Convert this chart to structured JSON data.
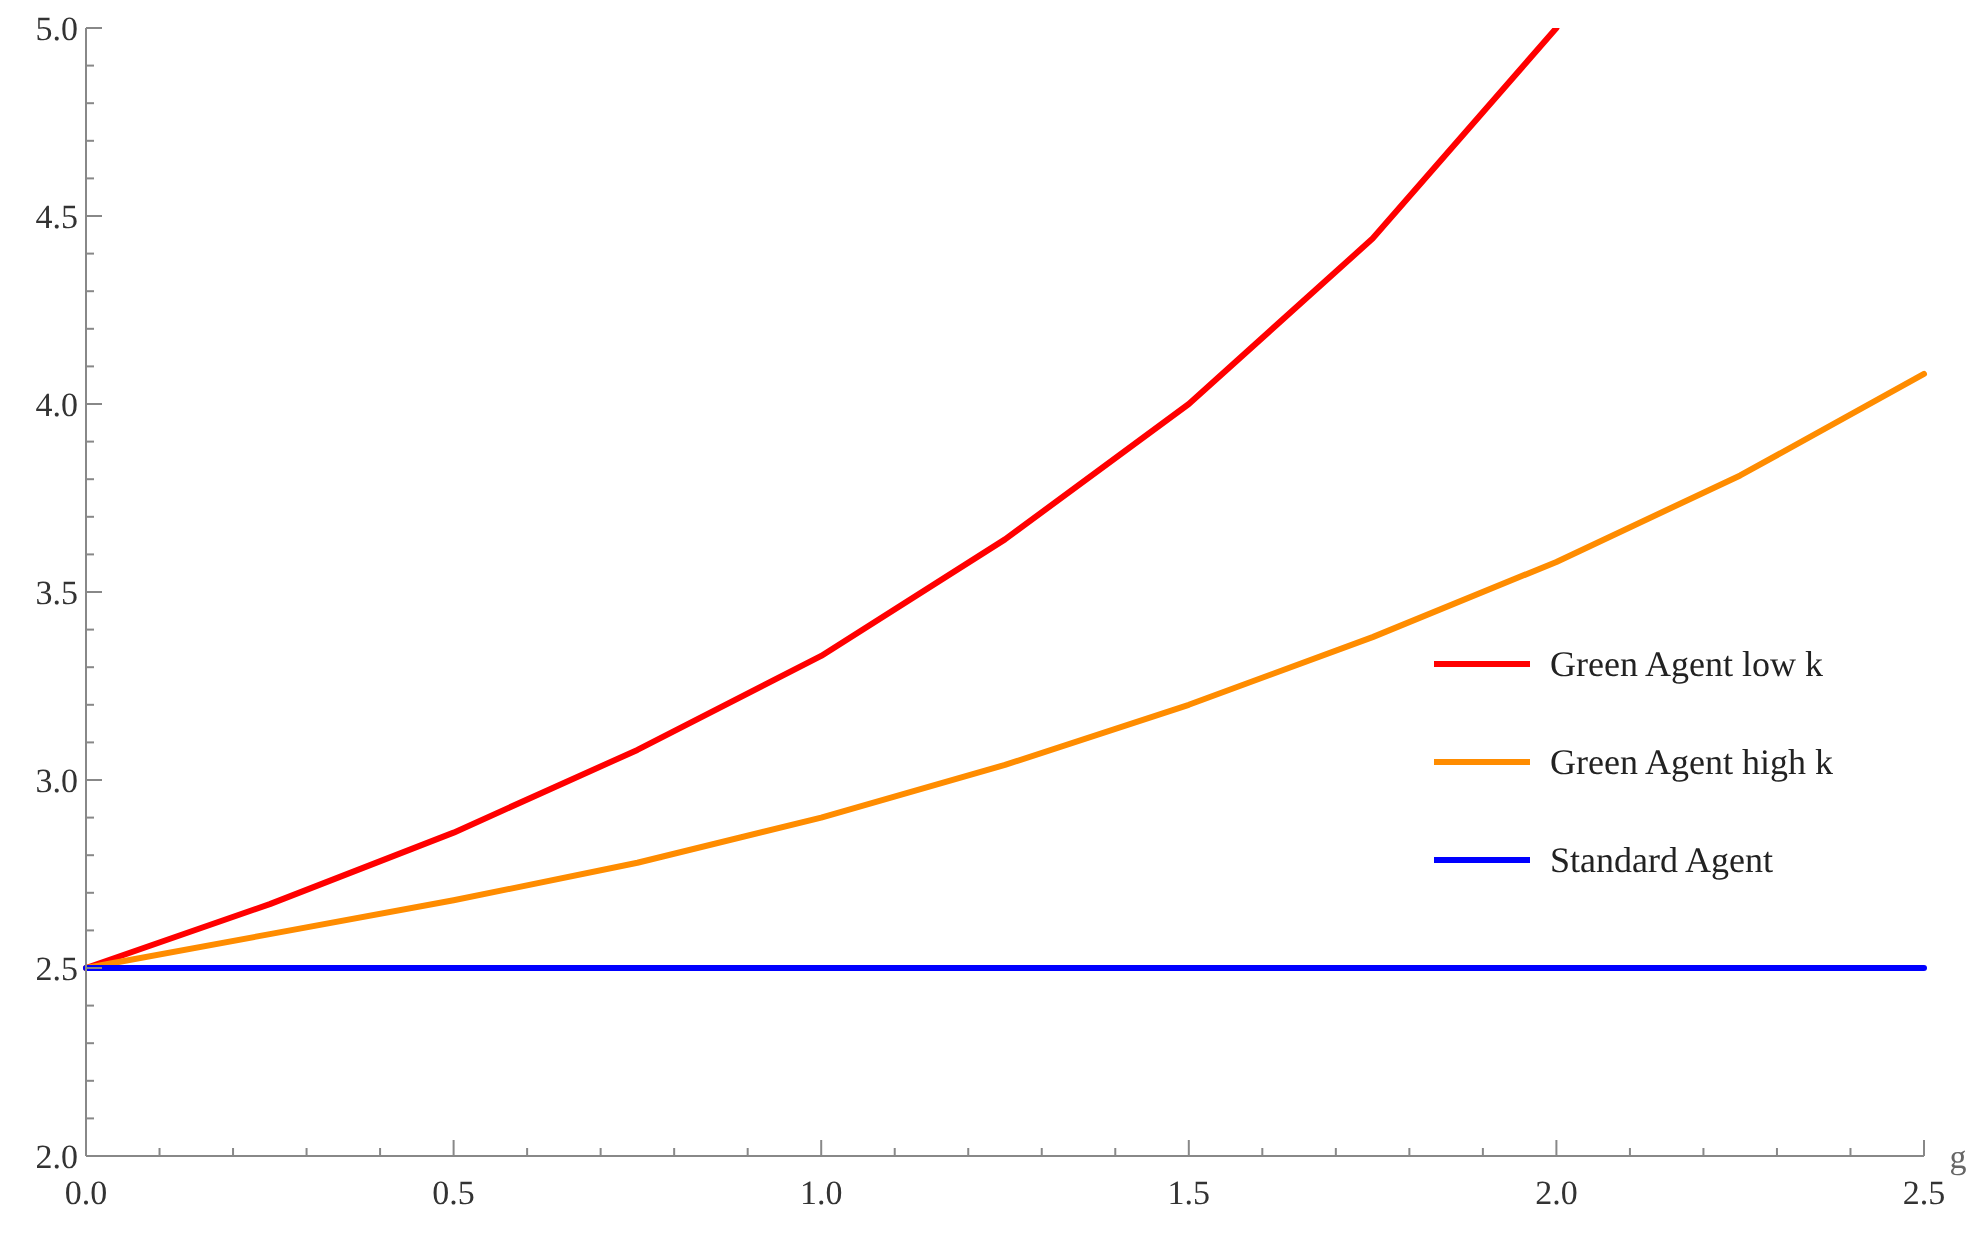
{
  "chart_data": {
    "type": "line",
    "xlabel": "g",
    "xlim": [
      0,
      2.5
    ],
    "ylim": [
      2,
      5
    ],
    "xticks": [
      {
        "value": 0,
        "label": "0.0"
      },
      {
        "value": 0.1,
        "label": null
      },
      {
        "value": 0.2,
        "label": null
      },
      {
        "value": 0.3,
        "label": null
      },
      {
        "value": 0.4,
        "label": null
      },
      {
        "value": 0.5,
        "label": "0.5"
      },
      {
        "value": 0.6,
        "label": null
      },
      {
        "value": 0.7,
        "label": null
      },
      {
        "value": 0.8,
        "label": null
      },
      {
        "value": 0.9,
        "label": null
      },
      {
        "value": 1,
        "label": "1.0"
      },
      {
        "value": 1.1,
        "label": null
      },
      {
        "value": 1.2,
        "label": null
      },
      {
        "value": 1.3,
        "label": null
      },
      {
        "value": 1.4,
        "label": null
      },
      {
        "value": 1.5,
        "label": "1.5"
      },
      {
        "value": 1.6,
        "label": null
      },
      {
        "value": 1.7,
        "label": null
      },
      {
        "value": 1.8,
        "label": null
      },
      {
        "value": 1.9,
        "label": null
      },
      {
        "value": 2,
        "label": "2.0"
      },
      {
        "value": 2.1,
        "label": null
      },
      {
        "value": 2.2,
        "label": null
      },
      {
        "value": 2.3,
        "label": null
      },
      {
        "value": 2.4,
        "label": null
      },
      {
        "value": 2.5,
        "label": "2.5"
      }
    ],
    "yticks": [
      {
        "value": 2,
        "label": "2.0"
      },
      {
        "value": 2.1,
        "label": null
      },
      {
        "value": 2.2,
        "label": null
      },
      {
        "value": 2.3,
        "label": null
      },
      {
        "value": 2.4,
        "label": null
      },
      {
        "value": 2.5,
        "label": "2.5"
      },
      {
        "value": 2.6,
        "label": null
      },
      {
        "value": 2.7,
        "label": null
      },
      {
        "value": 2.8,
        "label": null
      },
      {
        "value": 2.9,
        "label": null
      },
      {
        "value": 3,
        "label": "3.0"
      },
      {
        "value": 3.1,
        "label": null
      },
      {
        "value": 3.2,
        "label": null
      },
      {
        "value": 3.3,
        "label": null
      },
      {
        "value": 3.4,
        "label": null
      },
      {
        "value": 3.5,
        "label": "3.5"
      },
      {
        "value": 3.6,
        "label": null
      },
      {
        "value": 3.7,
        "label": null
      },
      {
        "value": 3.8,
        "label": null
      },
      {
        "value": 3.9,
        "label": null
      },
      {
        "value": 4,
        "label": "4.0"
      },
      {
        "value": 4.1,
        "label": null
      },
      {
        "value": 4.2,
        "label": null
      },
      {
        "value": 4.3,
        "label": null
      },
      {
        "value": 4.4,
        "label": null
      },
      {
        "value": 4.5,
        "label": "4.5"
      },
      {
        "value": 4.6,
        "label": null
      },
      {
        "value": 4.7,
        "label": null
      },
      {
        "value": 4.8,
        "label": null
      },
      {
        "value": 4.9,
        "label": null
      },
      {
        "value": 5,
        "label": "5.0"
      }
    ],
    "grid": false,
    "legend": "right",
    "marker": "none",
    "line_style": "solid",
    "series": [
      {
        "name": "Green Agent low k",
        "color": "#ff0000",
        "x": [
          0,
          0.25,
          0.5,
          0.75,
          1,
          1.25,
          1.5,
          1.75,
          2
        ],
        "values": [
          2.5,
          2.67,
          2.86,
          3.08,
          3.33,
          3.64,
          4.0,
          4.44,
          5.0
        ]
      },
      {
        "name": "Green Agent high k",
        "color": "#ff8c00",
        "x": [
          0,
          0.25,
          0.5,
          0.75,
          1,
          1.25,
          1.5,
          1.75,
          2,
          2.25,
          2.5
        ],
        "values": [
          2.5,
          2.59,
          2.68,
          2.78,
          2.9,
          3.04,
          3.2,
          3.38,
          3.58,
          3.81,
          4.08
        ]
      },
      {
        "name": "Standard Agent",
        "color": "#0000ff",
        "x": [
          0,
          2.5
        ],
        "values": [
          2.5,
          2.5
        ]
      }
    ]
  }
}
